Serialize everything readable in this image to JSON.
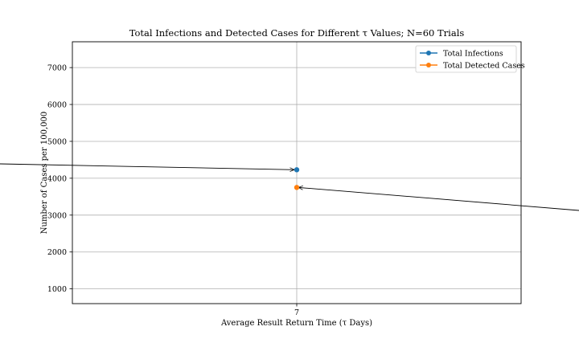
{
  "chart_data": {
    "type": "line",
    "title": "Total Infections and Detected Cases for Different τ Values; N=60 Trials",
    "xlabel": "Average Result Return Time (τ Days)",
    "ylabel": "Number of Cases per 100,000",
    "x": [
      7
    ],
    "x_tick_labels": [
      "7"
    ],
    "ylim": [
      600,
      7700
    ],
    "y_ticks": [
      1000,
      2000,
      3000,
      4000,
      5000,
      6000,
      7000
    ],
    "grid": true,
    "legend_position": "top-right",
    "series": [
      {
        "name": "Total Infections",
        "values": [
          4230
        ],
        "color": "#1f77b4"
      },
      {
        "name": "Total Detected Cases",
        "values": [
          3750
        ],
        "color": "#ff7f0e"
      }
    ]
  }
}
